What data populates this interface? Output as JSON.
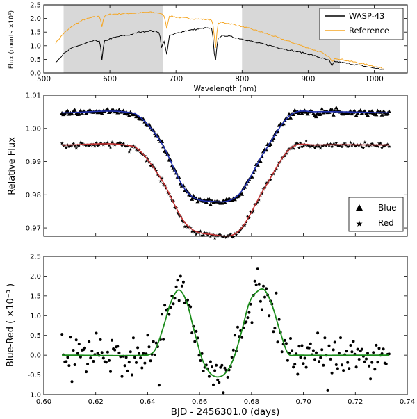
{
  "chart_data": [
    {
      "type": "line",
      "panel": "spectra",
      "xlabel": "Wavelength (nm)",
      "ylabel": "Flux (counts ×10⁶)",
      "xlim": [
        500,
        1050
      ],
      "ylim": [
        0.0,
        2.5
      ],
      "xticks": [
        "500",
        "600",
        "700",
        "800",
        "900",
        "1000"
      ],
      "yticks": [
        "0.0",
        "0.5",
        "1.0",
        "1.5",
        "2.0",
        "2.5"
      ],
      "shaded_ranges": [
        [
          530,
          680
        ],
        [
          800,
          948
        ]
      ],
      "legend_position": "top-right",
      "series": [
        {
          "name": "WASP-43",
          "color": "#000000",
          "x": [
            518,
            530,
            545,
            560,
            575,
            585,
            588,
            591,
            600,
            615,
            630,
            645,
            660,
            675,
            678,
            682,
            686,
            690,
            700,
            715,
            730,
            745,
            755,
            758,
            760,
            763,
            768,
            775,
            790,
            805,
            820,
            840,
            860,
            880,
            900,
            920,
            932,
            936,
            940,
            960,
            980,
            1000,
            1015
          ],
          "y": [
            0.4,
            0.7,
            0.95,
            1.05,
            1.18,
            1.18,
            0.45,
            1.15,
            1.25,
            1.35,
            1.4,
            1.5,
            1.55,
            1.5,
            0.95,
            1.15,
            0.7,
            1.35,
            1.45,
            1.55,
            1.6,
            1.65,
            1.62,
            0.7,
            0.45,
            1.25,
            1.35,
            1.37,
            1.3,
            1.22,
            1.12,
            1.02,
            0.9,
            0.8,
            0.7,
            0.55,
            0.45,
            0.25,
            0.42,
            0.35,
            0.27,
            0.18,
            0.12
          ]
        },
        {
          "name": "Reference",
          "color": "#f5a623",
          "x": [
            518,
            530,
            545,
            560,
            575,
            585,
            588,
            591,
            600,
            620,
            640,
            660,
            675,
            682,
            686,
            690,
            700,
            720,
            740,
            755,
            758,
            760,
            763,
            768,
            780,
            800,
            820,
            840,
            860,
            880,
            900,
            920,
            932,
            936,
            940,
            960,
            980,
            1000,
            1015
          ],
          "y": [
            1.1,
            1.45,
            1.75,
            1.95,
            2.05,
            2.08,
            1.7,
            2.08,
            2.15,
            2.18,
            2.2,
            2.23,
            2.2,
            2.1,
            1.65,
            2.1,
            2.05,
            2.0,
            1.97,
            1.95,
            1.35,
            0.9,
            1.8,
            1.85,
            1.82,
            1.7,
            1.57,
            1.42,
            1.25,
            1.08,
            0.92,
            0.75,
            0.58,
            0.4,
            0.55,
            0.45,
            0.35,
            0.25,
            0.15
          ]
        }
      ]
    },
    {
      "type": "scatter",
      "panel": "lightcurves",
      "ylabel": "Relative Flux",
      "xlim": [
        0.6,
        0.74
      ],
      "ylim": [
        0.9675,
        1.01
      ],
      "yticks": [
        "0.97",
        "0.98",
        "0.99",
        "1.00",
        "1.01"
      ],
      "legend_position": "bottom-right",
      "model_x": [
        0.607,
        0.635,
        0.645,
        0.655,
        0.665,
        0.675,
        0.685,
        0.695,
        0.705,
        0.733
      ],
      "series": [
        {
          "name": "Blue",
          "marker": "triangle",
          "marker_color": "#000000",
          "model_color": "#1f2fb0",
          "model_y": [
            1.0047,
            1.0045,
            0.996,
            0.981,
            0.978,
            0.98,
            0.993,
            1.004,
            1.005,
            1.0047
          ]
        },
        {
          "name": "Red",
          "marker": "star",
          "marker_color": "#000000",
          "model_color": "#c03030",
          "model_y": [
            0.995,
            0.9945,
            0.985,
            0.971,
            0.968,
            0.969,
            0.982,
            0.994,
            0.995,
            0.995
          ]
        }
      ]
    },
    {
      "type": "scatter",
      "panel": "difference",
      "xlabel": "BJD - 2456301.0 (days)",
      "ylabel": "Blue-Red ( ×10⁻³ )",
      "xlim": [
        0.6,
        0.74
      ],
      "ylim": [
        -1.0,
        2.5
      ],
      "xticks": [
        "0.60",
        "0.62",
        "0.64",
        "0.66",
        "0.68",
        "0.70",
        "0.72",
        "0.74"
      ],
      "yticks": [
        "-1.0",
        "-0.5",
        "0.0",
        "0.5",
        "1.0",
        "1.5",
        "2.0",
        "2.5"
      ],
      "model": {
        "color": "#1a8c1a",
        "x": [
          0.607,
          0.64,
          0.643,
          0.646,
          0.649,
          0.652,
          0.655,
          0.658,
          0.661,
          0.664,
          0.667,
          0.67,
          0.673,
          0.676,
          0.679,
          0.682,
          0.685,
          0.688,
          0.691,
          0.694,
          0.697,
          0.733
        ],
        "y": [
          0.0,
          0.0,
          0.15,
          0.7,
          1.35,
          1.65,
          1.35,
          0.6,
          -0.1,
          -0.45,
          -0.55,
          -0.45,
          -0.1,
          0.55,
          1.3,
          1.6,
          1.65,
          1.25,
          0.6,
          0.05,
          0.0,
          0.0
        ]
      }
    }
  ]
}
